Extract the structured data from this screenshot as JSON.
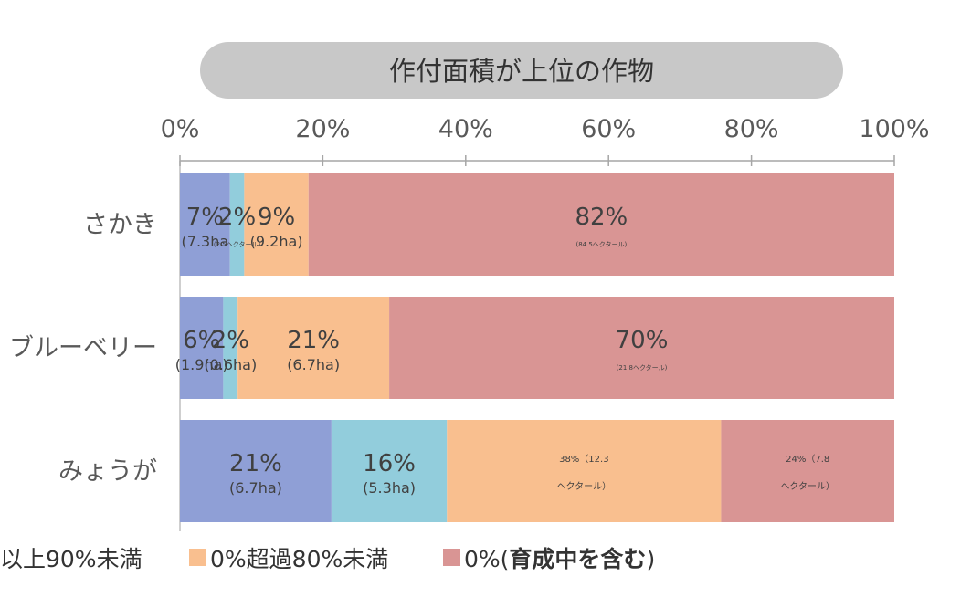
{
  "chart_data": {
    "type": "bar",
    "orientation": "horizontal",
    "stacked": true,
    "normalized": true,
    "title": "作付面積が上位の作物",
    "xlim": [
      0,
      100
    ],
    "x_ticks": [
      "0%",
      "20%",
      "40%",
      "60%",
      "80%",
      "100%"
    ],
    "categories": [
      "さかき",
      "ブルーベリー",
      "みょうが"
    ],
    "series": [
      {
        "color": "#8f9fd6",
        "values": [
          7,
          6,
          21
        ],
        "labels": [
          "7%",
          "6%",
          "21%"
        ],
        "sublabels": [
          "(7.3ha",
          "(1.9ha)",
          "(6.7ha)"
        ]
      },
      {
        "name": "以上90%未満",
        "color": "#92cddc",
        "values": [
          2,
          2,
          16
        ],
        "labels": [
          "2%",
          "2%",
          "16%"
        ],
        "sublabels": [
          "(2.5ヘクタール)",
          "(0.6ha)",
          "(5.3ha)"
        ]
      },
      {
        "name": "0%超過80%未満",
        "color": "#f9bf8f",
        "values": [
          9,
          21,
          38
        ],
        "labels": [
          "9%",
          "21%",
          "38%（12.3"
        ],
        "sublabels": [
          "(9.2ha)",
          "(6.7ha)",
          "ヘクタール）"
        ]
      },
      {
        "name": "0%(育成中を含む)",
        "name_prefix": "0%(",
        "name_bold": "育成中を含む",
        "name_suffix": ")",
        "color": "#d99594",
        "values": [
          82,
          70,
          24
        ],
        "labels": [
          "82%",
          "70%",
          "24%（7.8"
        ],
        "sublabels": [
          "(84.5ヘクタール)",
          "(21.8ヘクタール)",
          "ヘクタール）"
        ]
      }
    ],
    "legend_position": "bottom",
    "grid": false
  }
}
